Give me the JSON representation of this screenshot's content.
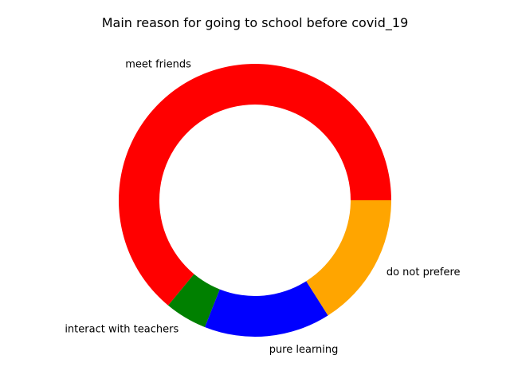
{
  "chart_data": {
    "type": "pie",
    "style": "donut",
    "title": "Main reason for going to school before covid_19",
    "start_angle_deg": 0,
    "direction": "counterclockwise",
    "slices": [
      {
        "label": "meet friends",
        "value": 64,
        "color": "#ff0000"
      },
      {
        "label": "interact with teachers",
        "value": 5,
        "color": "#008000"
      },
      {
        "label": "pure learning",
        "value": 15,
        "color": "#0000ff"
      },
      {
        "label": "do not prefere",
        "value": 16,
        "color": "#ffa500"
      }
    ],
    "legend": false
  }
}
